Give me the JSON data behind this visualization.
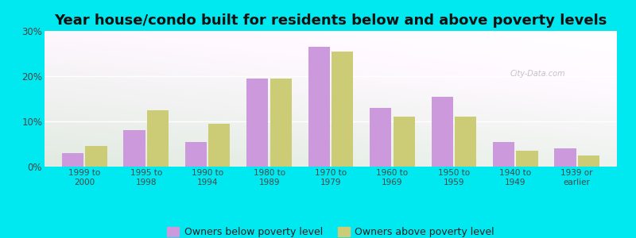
{
  "title": "Year house/condo built for residents below and above poverty levels",
  "categories": [
    "1999 to\n2000",
    "1995 to\n1998",
    "1990 to\n1994",
    "1980 to\n1989",
    "1970 to\n1979",
    "1960 to\n1969",
    "1950 to\n1959",
    "1940 to\n1949",
    "1939 or\nearlier"
  ],
  "below_poverty": [
    3.0,
    8.0,
    5.5,
    19.5,
    26.5,
    13.0,
    15.5,
    5.5,
    4.0
  ],
  "above_poverty": [
    4.5,
    12.5,
    9.5,
    19.5,
    25.5,
    11.0,
    11.0,
    3.5,
    2.5
  ],
  "below_color": "#cc99dd",
  "above_color": "#cccc77",
  "ylim": [
    0,
    30
  ],
  "yticks": [
    0,
    10,
    20,
    30
  ],
  "ytick_labels": [
    "0%",
    "10%",
    "20%",
    "30%"
  ],
  "outer_bg": "#00e8f0",
  "plot_bg_top": "#c8e8c0",
  "plot_bg_bottom": "#f0fff0",
  "title_fontsize": 13,
  "legend_below_label": "Owners below poverty level",
  "legend_above_label": "Owners above poverty level",
  "watermark": "City-Data.com"
}
